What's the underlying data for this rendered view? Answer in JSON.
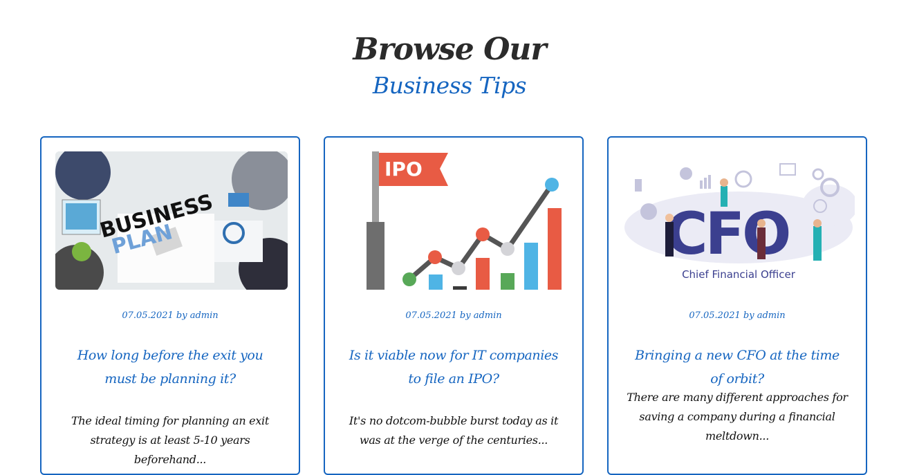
{
  "section": {
    "heading": "Browse Our",
    "subheading": "Business Tips"
  },
  "posts": [
    {
      "date": "07.05.2021",
      "by": "by",
      "author": "admin",
      "title": "How long before the exit you must be planning it?",
      "excerpt": "The ideal timing for planning an exit strategy is at least 5-10 years beforehand...",
      "image_text": [
        "BUSINESS",
        "PLAN"
      ]
    },
    {
      "date": "07.05.2021",
      "by": "by",
      "author": "admin",
      "title": "Is it viable now for IT companies to file an IPO?",
      "excerpt": "It's no dotcom-bubble burst today as it was at the verge of the centuries...",
      "image_text": [
        "IPO"
      ]
    },
    {
      "date": "07.05.2021",
      "by": "by",
      "author": "admin",
      "title": "Bringing a new CFO at the time of orbit?",
      "excerpt": "There are many different approaches for saving a company during a financial meltdown...",
      "image_text": [
        "CFO",
        "Chief Financial Officer"
      ]
    }
  ],
  "colors": {
    "accent": "#1565c0",
    "heading": "#2b2b2b",
    "cfo_navy": "#3b3f8f"
  }
}
